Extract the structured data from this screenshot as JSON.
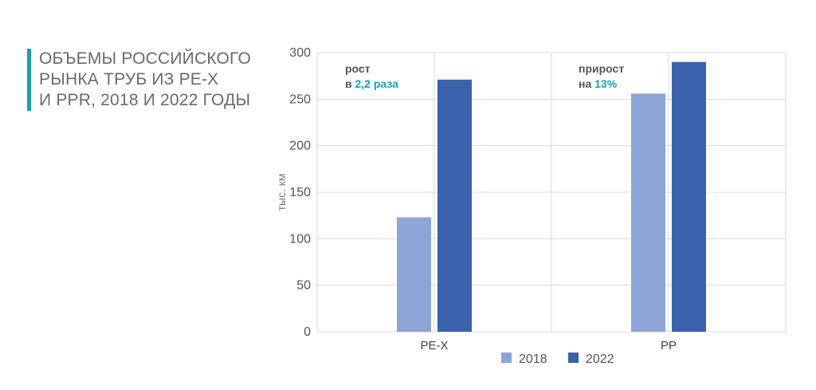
{
  "title_lines": [
    "ОБЪЕМЫ РОССИЙСКОГО",
    "РЫНКА ТРУБ ИЗ PE-X",
    "И PPR, 2018 И 2022 ГОДЫ"
  ],
  "colors": {
    "accent": "#13a1b5",
    "series_2018": "#8fa4d6",
    "series_2022": "#3b63ad",
    "grid": "#d9d9d9",
    "annotation_text": "#555555"
  },
  "chart_data": {
    "type": "bar",
    "title": "ОБЪЕМЫ РОССИЙСКОГО РЫНКА ТРУБ ИЗ PE-X И PPR, 2018 И 2022 ГОДЫ",
    "categories": [
      "PE-X",
      "PP"
    ],
    "series": [
      {
        "name": "2018",
        "values": [
          123,
          256
        ]
      },
      {
        "name": "2022",
        "values": [
          271,
          290
        ]
      }
    ],
    "xlabel": "",
    "ylabel": "тыс. км",
    "ylim": [
      0,
      300
    ],
    "yticks": [
      0,
      50,
      100,
      150,
      200,
      250,
      300
    ],
    "grid": true,
    "legend": "bottom",
    "annotations": [
      {
        "line1": "рост",
        "line2_prefix": "в ",
        "line2_highlight": "2,2 раза"
      },
      {
        "line1": "прирост",
        "line2_prefix": "на ",
        "line2_highlight": "13%"
      }
    ]
  }
}
